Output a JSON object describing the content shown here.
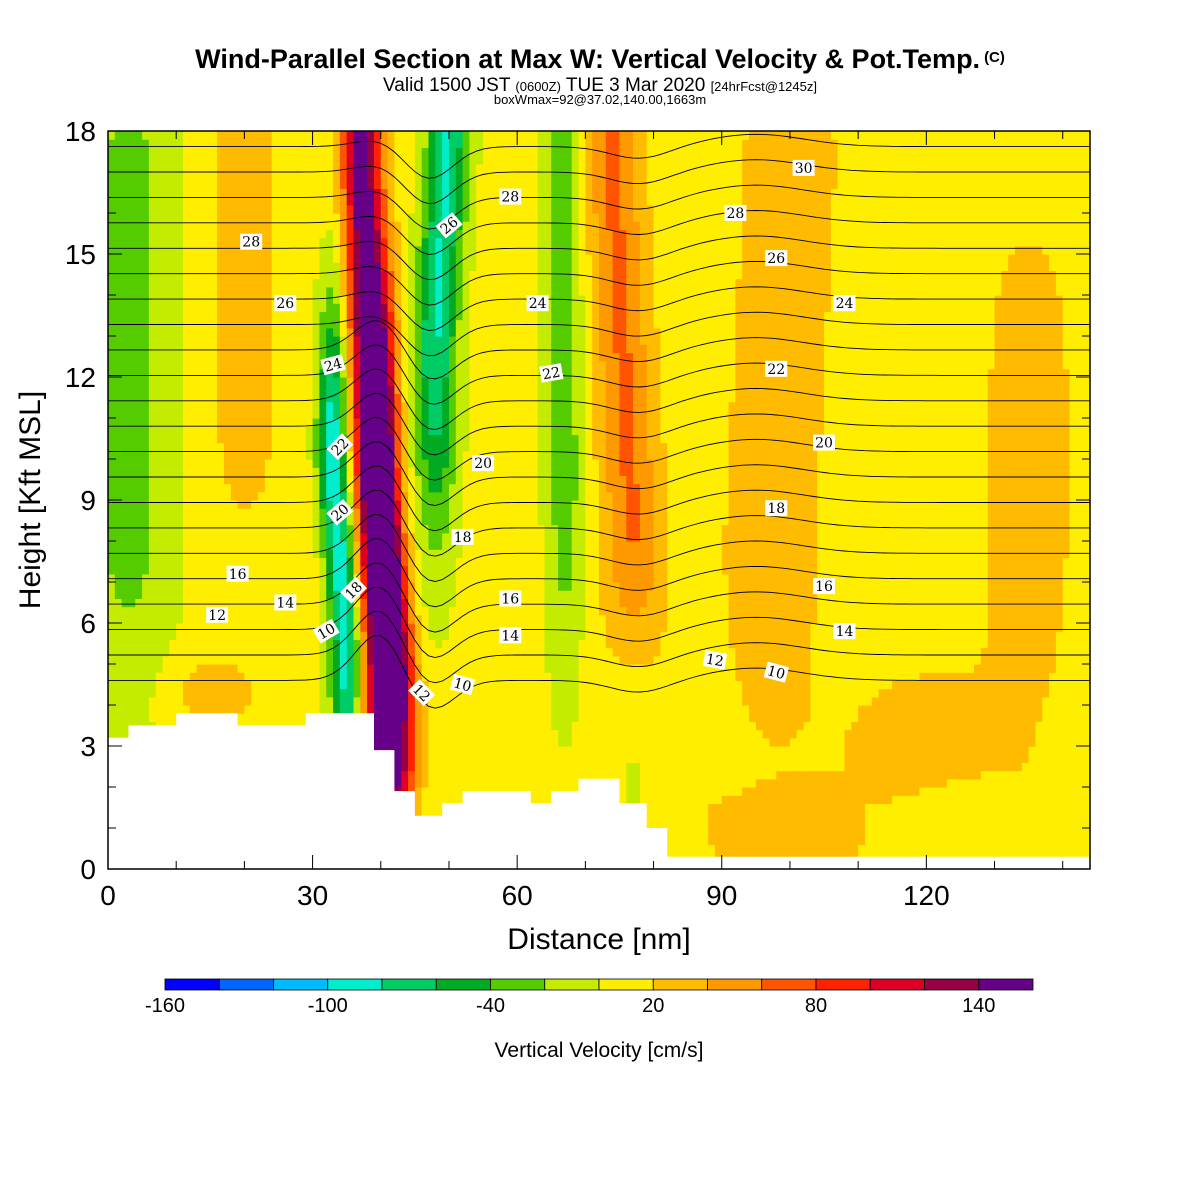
{
  "title": {
    "main": "Wind-Parallel Section at Max W: Vertical Velocity & Pot.Temp.",
    "copyright": "(C)",
    "valid_prefix": "Valid 1500 JST",
    "valid_z": "(0600Z)",
    "valid_date": "TUE 3 Mar 2020",
    "valid_fcst": "[24hrFcst@1245z]",
    "boxline": "boxWmax=92@37.02,140.00,1663m"
  },
  "colors": {
    "w_palette": [
      "#0000ff",
      "#0066ff",
      "#00bbff",
      "#00eecc",
      "#00cc66",
      "#00aa22",
      "#55cc00",
      "#c4ec00",
      "#ffee00",
      "#ffbb00",
      "#ff9900",
      "#ff5500",
      "#ff2200",
      "#dd0022",
      "#990044",
      "#660088"
    ],
    "contour": "#000000",
    "terrain": "#ffffff"
  },
  "chart_data": {
    "type": "heatmap",
    "xlabel": "Distance [nm]",
    "ylabel": "Height [Kft MSL]",
    "xlim": [
      0,
      144
    ],
    "ylim": [
      0,
      18
    ],
    "xticks": [
      0,
      30,
      60,
      90,
      120
    ],
    "yticks": [
      0,
      3,
      6,
      9,
      12,
      15,
      18
    ],
    "colorbar": {
      "label": "Vertical Velocity [cm/s]",
      "range": [
        -160,
        160
      ],
      "tick_labels": [
        -160,
        -100,
        -40,
        20,
        80,
        140
      ]
    },
    "terrain_profile": [
      [
        0,
        3.2
      ],
      [
        3,
        3.2
      ],
      [
        3,
        3.5
      ],
      [
        10,
        3.5
      ],
      [
        10,
        3.8
      ],
      [
        19,
        3.8
      ],
      [
        19,
        3.5
      ],
      [
        29,
        3.5
      ],
      [
        29,
        3.8
      ],
      [
        39,
        3.8
      ],
      [
        39,
        2.9
      ],
      [
        42,
        2.9
      ],
      [
        42,
        1.9
      ],
      [
        45,
        1.9
      ],
      [
        45,
        1.3
      ],
      [
        49,
        1.3
      ],
      [
        49,
        1.6
      ],
      [
        52,
        1.6
      ],
      [
        52,
        1.9
      ],
      [
        62,
        1.9
      ],
      [
        62,
        1.6
      ],
      [
        65,
        1.6
      ],
      [
        65,
        1.9
      ],
      [
        69,
        1.9
      ],
      [
        69,
        2.2
      ],
      [
        75,
        2.2
      ],
      [
        75,
        1.6
      ],
      [
        79,
        1.6
      ],
      [
        79,
        1.0
      ],
      [
        82,
        1.0
      ],
      [
        82,
        0.3
      ],
      [
        144,
        0.3
      ]
    ],
    "w_features": [
      {
        "x": 40,
        "z0": 5,
        "x1": 37,
        "z1": 18,
        "sx": 2.0,
        "sz": 4.5,
        "w": 150
      },
      {
        "x": 43,
        "z0": 4.5,
        "x1": 40,
        "z1": 10,
        "sx": 1.8,
        "sz": 3.0,
        "w": 110
      },
      {
        "x": 35,
        "z0": 5.5,
        "x1": 33,
        "z1": 10,
        "sx": 1.6,
        "sz": 2.8,
        "w": -105
      },
      {
        "x": 48,
        "z0": 13,
        "x1": 50,
        "z1": 18,
        "sx": 2.2,
        "sz": 3.5,
        "w": -90
      },
      {
        "x": 67,
        "z0": 10,
        "x1": 67,
        "z1": 17,
        "sx": 2.0,
        "sz": 4.0,
        "w": -40
      },
      {
        "x": 77,
        "z0": 8,
        "x1": 74,
        "z1": 17,
        "sx": 3.0,
        "sz": 4.5,
        "w": 55
      },
      {
        "x": 3,
        "z0": 9,
        "x1": 3,
        "z1": 16,
        "sx": 5.0,
        "sz": 4.0,
        "w": -35
      },
      {
        "x": 20,
        "z0": 12,
        "x1": 20,
        "z1": 18,
        "sx": 4.0,
        "sz": 3.0,
        "w": 22
      },
      {
        "x": 97,
        "z0": 8,
        "x1": 100,
        "z1": 17,
        "sx": 6.0,
        "sz": 4.0,
        "w": 22
      },
      {
        "x": 135,
        "z0": 8,
        "x1": 135,
        "z1": 12,
        "sx": 5.0,
        "sz": 3.0,
        "w": 22
      },
      {
        "x": 100,
        "z0": 1.5,
        "x1": 120,
        "z1": 2.5,
        "sx": 10.0,
        "sz": 2.0,
        "w": 22
      },
      {
        "x": 77,
        "z0": 2.5,
        "x1": 77,
        "z1": 4.5,
        "sx": 2.5,
        "sz": 1.5,
        "w": -35
      },
      {
        "x": 15,
        "z0": 4.2,
        "x1": 15,
        "z1": 4.4,
        "sx": 5.0,
        "sz": 0.6,
        "w": 22
      }
    ],
    "theta_labels": [
      {
        "text": "28",
        "x": 21,
        "z": 15.3,
        "rot": 0
      },
      {
        "text": "26",
        "x": 26,
        "z": 13.8,
        "rot": 0
      },
      {
        "text": "24",
        "x": 33,
        "z": 12.3,
        "rot": 15
      },
      {
        "text": "22",
        "x": 34,
        "z": 10.3,
        "rot": 45
      },
      {
        "text": "20",
        "x": 34,
        "z": 8.7,
        "rot": 40
      },
      {
        "text": "18",
        "x": 36,
        "z": 6.8,
        "rot": 45
      },
      {
        "text": "16",
        "x": 19,
        "z": 7.2,
        "rot": 0
      },
      {
        "text": "14",
        "x": 26,
        "z": 6.5,
        "rot": 0
      },
      {
        "text": "12",
        "x": 16,
        "z": 6.2,
        "rot": 0
      },
      {
        "text": "10",
        "x": 32,
        "z": 5.8,
        "rot": 30
      },
      {
        "text": "12",
        "x": 46,
        "z": 4.3,
        "rot": -45
      },
      {
        "text": "10",
        "x": 52,
        "z": 4.5,
        "rot": -15
      },
      {
        "text": "26",
        "x": 50,
        "z": 15.7,
        "rot": 40
      },
      {
        "text": "28",
        "x": 59,
        "z": 16.4,
        "rot": 0
      },
      {
        "text": "24",
        "x": 63,
        "z": 13.8,
        "rot": 0
      },
      {
        "text": "22",
        "x": 65,
        "z": 12.1,
        "rot": 10
      },
      {
        "text": "20",
        "x": 55,
        "z": 9.9,
        "rot": 0
      },
      {
        "text": "18",
        "x": 52,
        "z": 8.1,
        "rot": 0
      },
      {
        "text": "16",
        "x": 59,
        "z": 6.6,
        "rot": 0
      },
      {
        "text": "14",
        "x": 59,
        "z": 5.7,
        "rot": 0
      },
      {
        "text": "30",
        "x": 102,
        "z": 17.1,
        "rot": 0
      },
      {
        "text": "28",
        "x": 92,
        "z": 16.0,
        "rot": 0
      },
      {
        "text": "26",
        "x": 98,
        "z": 14.9,
        "rot": 0
      },
      {
        "text": "24",
        "x": 108,
        "z": 13.8,
        "rot": 0
      },
      {
        "text": "22",
        "x": 98,
        "z": 12.2,
        "rot": 0
      },
      {
        "text": "20",
        "x": 105,
        "z": 10.4,
        "rot": 0
      },
      {
        "text": "18",
        "x": 98,
        "z": 8.8,
        "rot": 0
      },
      {
        "text": "16",
        "x": 105,
        "z": 6.9,
        "rot": 0
      },
      {
        "text": "14",
        "x": 108,
        "z": 5.8,
        "rot": 0
      },
      {
        "text": "12",
        "x": 89,
        "z": 5.1,
        "rot": -10
      },
      {
        "text": "10",
        "x": 98,
        "z": 4.8,
        "rot": -15
      }
    ]
  }
}
